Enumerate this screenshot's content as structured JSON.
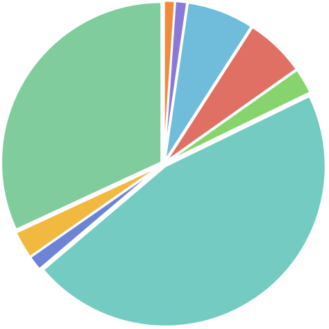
{
  "chart_data": {
    "type": "pie",
    "values": [
      1.1,
      1.2,
      6.8,
      6.1,
      2.6,
      46,
      1.5,
      2.8,
      31.9
    ],
    "colors": [
      "#f28a3c",
      "#8b79d8",
      "#6fbddb",
      "#e07064",
      "#88d46c",
      "#73cbc1",
      "#6d83d6",
      "#f2b941",
      "#80cc9d"
    ]
  }
}
